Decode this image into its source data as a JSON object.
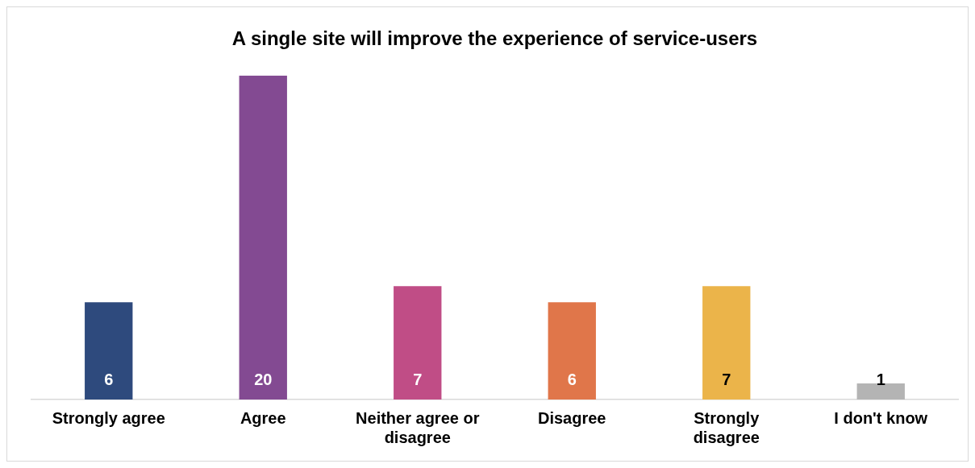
{
  "chart_data": {
    "type": "bar",
    "title": "A single site will improve the experience of service-users",
    "categories": [
      "Strongly agree",
      "Agree",
      "Neither agree or disagree",
      "Disagree",
      "Strongly disagree",
      "I don't know"
    ],
    "values": [
      6,
      20,
      7,
      6,
      7,
      1
    ],
    "colors": [
      "#2e4a7d",
      "#834a92",
      "#c04d86",
      "#e0764a",
      "#ebb44a",
      "#b4b4b4"
    ],
    "data_labels": true,
    "grid": false,
    "legend": false
  }
}
